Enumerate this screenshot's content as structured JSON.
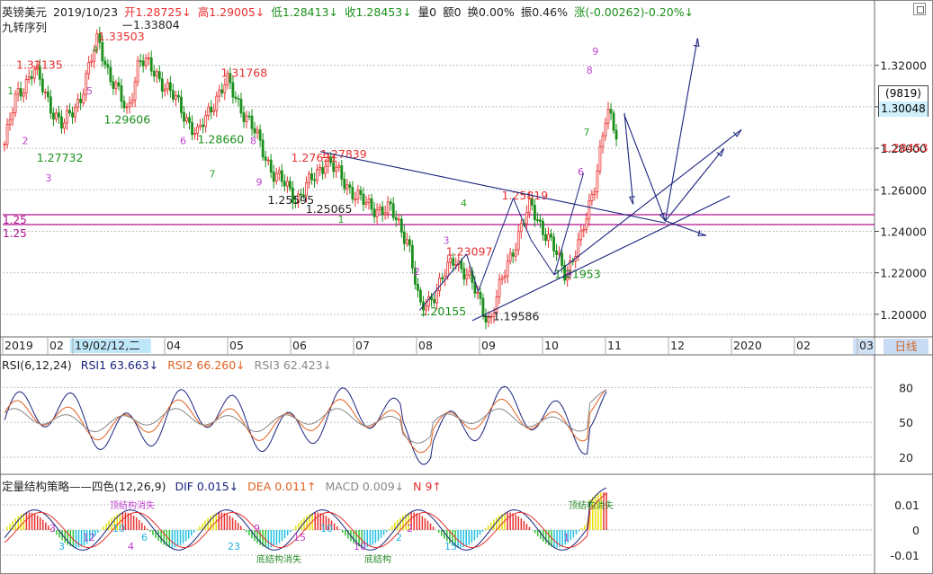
{
  "header": {
    "name": "英镑美元",
    "date": "2019/10/23",
    "open": "开1.28725↓",
    "high": "高1.29005↓",
    "low": "低1.28413↓",
    "close": "收1.28453↓",
    "volume": "量0",
    "amount": "额0",
    "turnover": "换0.00%",
    "amplitude": "振0.46%",
    "change": "涨(-0.00262)-0.20%↓",
    "indicator": "九转序列"
  },
  "price_box": {
    "top": "(9819)",
    "value": "1.30048"
  },
  "last_price": "1.28453",
  "date_axis": {
    "labels": [
      "2019",
      "02",
      "19/02/12,二",
      "04",
      "05",
      "06",
      "07",
      "08",
      "09",
      "10",
      "11",
      "12",
      "2020",
      "02",
      "03"
    ],
    "period_button": "日线"
  },
  "rsi_panel": {
    "title": "RSI(6,12,24)",
    "rsi1": "RSI1 63.663↓",
    "rsi2": "RSI2 66.260↓",
    "rsi3": "RSI3 62.423↓",
    "ticks": [
      "80",
      "50",
      "20"
    ]
  },
  "macd_panel": {
    "title": "定量结构策略——四色(12,26,9)",
    "dif": "DIF 0.015↓",
    "dea": "DEA 0.011↑",
    "macd": "MACD 0.009↓",
    "n": "N 9↑",
    "ticks": [
      "0.01",
      "0",
      "-0.01"
    ],
    "labels": {
      "top_fail": "顶结构消失",
      "bot_fail": "底结构消失",
      "bot_struct": "底结构"
    },
    "numbers": [
      {
        "t": "3"
      },
      {
        "t": "3"
      },
      {
        "t": "12"
      },
      {
        "t": "10"
      },
      {
        "t": "4"
      },
      {
        "t": "6"
      },
      {
        "t": "9"
      },
      {
        "t": "23"
      },
      {
        "t": "15"
      },
      {
        "t": "10"
      },
      {
        "t": "10"
      },
      {
        "t": "2"
      },
      {
        "t": "2"
      },
      {
        "t": "15"
      },
      {
        "t": "1"
      }
    ]
  },
  "colors": {
    "up": "#e8302e",
    "down": "#1a8f1a",
    "purple": "#c040d0",
    "line": "#1a237e",
    "grid": "#bdbdbd",
    "rsi1": "#1a237e",
    "rsi2": "#e06020",
    "rsi3": "#888888",
    "magenta": "#b0108e"
  },
  "chart_data": [
    {
      "type": "candlestick",
      "ylim": [
        1.19,
        1.335
      ],
      "yticks": [
        "1.32000",
        "1.30000",
        "1.28000",
        "1.26000",
        "1.24000",
        "1.22000",
        "1.20000"
      ],
      "horizontal_lines": [
        {
          "label": "1.25"
        },
        {
          "label": "1.25"
        }
      ],
      "annotations": [
        {
          "text": "1.33503",
          "color": "red",
          "date_index": 1.6,
          "price": 1.332
        },
        {
          "text": "1.33804",
          "color": "black",
          "date_index": 2.2,
          "price": 1.3375
        },
        {
          "text": "1.32135",
          "color": "red",
          "date_index": 0.2,
          "price": 1.3183
        },
        {
          "text": "1.31768",
          "color": "red",
          "date_index": 3.7,
          "price": 1.3144
        },
        {
          "text": "1.29606",
          "color": "green",
          "date_index": 1.7,
          "price": 1.292
        },
        {
          "text": "1.28660",
          "color": "green",
          "date_index": 3.3,
          "price": 1.2825
        },
        {
          "text": "1.27732",
          "color": "green",
          "date_index": 0.55,
          "price": 1.2736
        },
        {
          "text": "1.27631",
          "color": "red",
          "date_index": 4.9,
          "price": 1.2735
        },
        {
          "text": "1.27839",
          "color": "red",
          "date_index": 5.4,
          "price": 1.2752
        },
        {
          "text": "1.25595",
          "color": "black",
          "date_index": 4.5,
          "price": 1.2533
        },
        {
          "text": "1.25065",
          "color": "black",
          "date_index": 5.15,
          "price": 1.2488
        },
        {
          "text": "1.25819",
          "color": "red",
          "date_index": 8.5,
          "price": 1.2553
        },
        {
          "text": "1.23097",
          "color": "red",
          "date_index": 7.55,
          "price": 1.2282
        },
        {
          "text": "1.21953",
          "color": "green",
          "date_index": 9.4,
          "price": 1.2174
        },
        {
          "text": "1.20155",
          "color": "green",
          "date_index": 7.1,
          "price": 1.1995
        },
        {
          "text": "1.19586",
          "color": "black",
          "date_index": 8.35,
          "price": 1.1972
        }
      ],
      "trend_lines": [
        {
          "from": [
            5.4,
            1.2784
          ],
          "to": [
            11.3,
            1.244
          ]
        },
        {
          "from": [
            8.0,
            1.197
          ],
          "to": [
            12.4,
            1.257
          ]
        },
        {
          "from": [
            9.4,
            1.219
          ],
          "to": [
            12.6,
            1.289
          ]
        },
        {
          "from": [
            10.6,
            1.297
          ],
          "to": [
            10.75,
            1.253
          ]
        },
        {
          "from": [
            10.6,
            1.296
          ],
          "to": [
            11.3,
            1.245
          ]
        },
        {
          "from": [
            11.3,
            1.245
          ],
          "to": [
            11.85,
            1.333
          ]
        },
        {
          "from": [
            11.3,
            1.245
          ],
          "to": [
            12.3,
            1.28
          ]
        },
        {
          "from": [
            11.3,
            1.245
          ],
          "to": [
            12.0,
            1.238
          ]
        }
      ]
    },
    {
      "type": "line",
      "name": "RSI",
      "series": [
        "RSI1",
        "RSI2",
        "RSI3"
      ],
      "ylim": [
        10,
        95
      ],
      "note": "three smoothed RSI lines across the same date range"
    },
    {
      "type": "bar",
      "name": "MACD",
      "ylim": [
        -0.015,
        0.015
      ],
      "series": [
        "DIF",
        "DEA",
        "MACD"
      ]
    }
  ]
}
